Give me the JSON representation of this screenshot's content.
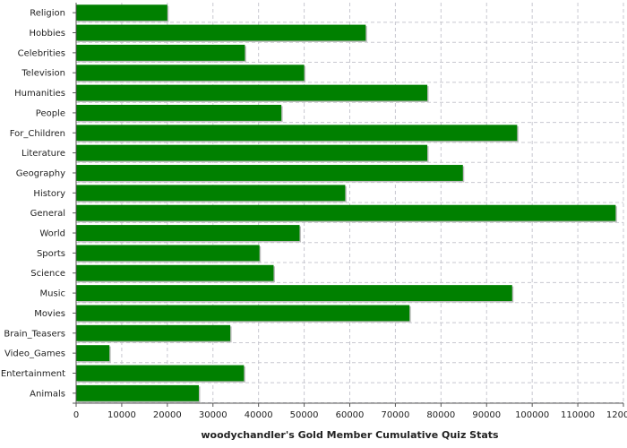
{
  "chart_data": {
    "type": "bar",
    "orientation": "horizontal",
    "title": "",
    "xlabel": "woodychandler's Gold Member Cumulative Quiz Stats",
    "ylabel": "",
    "xlim": [
      0,
      120000
    ],
    "xticks": [
      0,
      10000,
      20000,
      30000,
      40000,
      50000,
      60000,
      70000,
      80000,
      90000,
      100000,
      110000,
      120000
    ],
    "grid": true,
    "bar_color": "#008000",
    "categories": [
      "Religion",
      "Hobbies",
      "Celebrities",
      "Television",
      "Humanities",
      "People",
      "For_Children",
      "Literature",
      "Geography",
      "History",
      "General",
      "World",
      "Sports",
      "Science",
      "Music",
      "Movies",
      "Brain_Teasers",
      "Video_Games",
      "Entertainment",
      "Animals"
    ],
    "values": [
      20000,
      63500,
      37000,
      50000,
      77000,
      45000,
      96700,
      77000,
      84800,
      59000,
      118300,
      49000,
      40200,
      43300,
      95600,
      73100,
      33800,
      7300,
      36800,
      26900
    ]
  }
}
